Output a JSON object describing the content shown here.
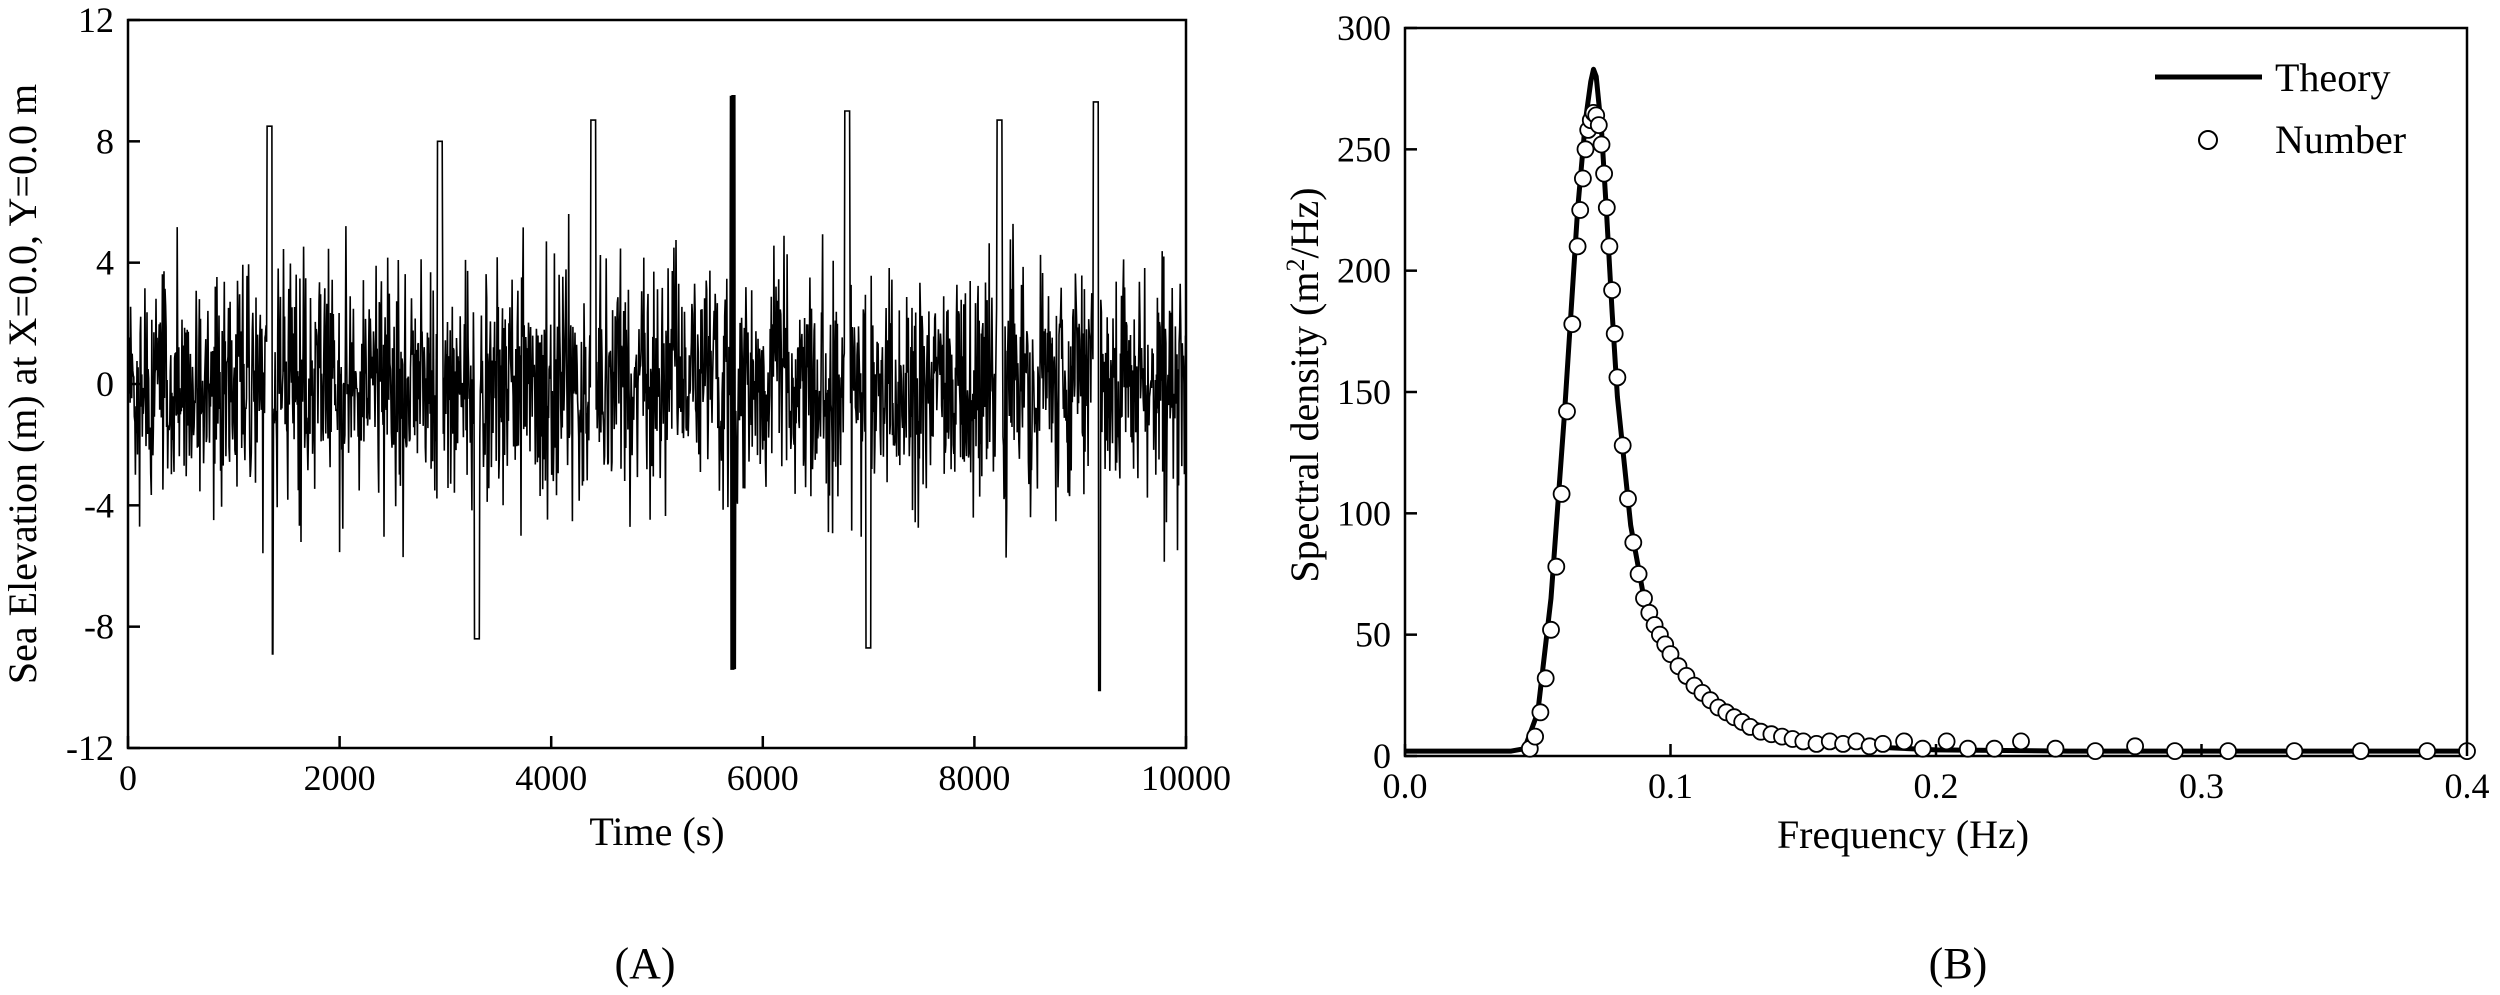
{
  "chart_data": [
    {
      "type": "line",
      "panel_label": "(A)",
      "xlabel": "Time (s)",
      "ylabel": "Sea Elevation (m) at X=0.0, Y=0.0 m",
      "xlim": [
        0,
        10000
      ],
      "ylim": [
        -12,
        12
      ],
      "x_ticks": [
        0,
        2000,
        4000,
        6000,
        8000,
        10000
      ],
      "y_ticks": [
        -12,
        -8,
        -4,
        0,
        4,
        8,
        12
      ],
      "grid": false,
      "series": [
        {
          "color": "#000000",
          "description_values": {
            "approx_envelope_min": -10.1,
            "approx_envelope_max": 9.5,
            "mean": 0
          },
          "peaks": [
            {
              "x": 1340,
              "y": 8.5
            },
            {
              "x": 1350,
              "y": -8.9
            },
            {
              "x": 3300,
              "y": -8.4
            },
            {
              "x": 5720,
              "y": 9.5
            },
            {
              "x": 5720,
              "y": -9.4
            },
            {
              "x": 7000,
              "y": -8.7
            },
            {
              "x": 9150,
              "y": 9.3
            },
            {
              "x": 9170,
              "y": -10.1
            },
            {
              "x": 4400,
              "y": 8.7
            },
            {
              "x": 6800,
              "y": 9.0
            },
            {
              "x": 2950,
              "y": 8.0
            },
            {
              "x": 8240,
              "y": 8.7
            }
          ]
        }
      ]
    },
    {
      "type": "line",
      "panel_label": "(B)",
      "xlabel": "Frequency (Hz)",
      "ylabel_main": "Spectral density (m",
      "ylabel_sup": "2",
      "ylabel_tail": "/Hz)",
      "xlim": [
        0,
        0.4
      ],
      "ylim": [
        0,
        300
      ],
      "x_ticks": [
        "0.0",
        "0.1",
        "0.2",
        "0.3",
        "0.4"
      ],
      "y_ticks": [
        0,
        50,
        100,
        150,
        200,
        250,
        300
      ],
      "grid": false,
      "legend": {
        "placement": "top-right",
        "entries": [
          "Theory",
          "Number"
        ]
      },
      "series": [
        {
          "name": "Theory",
          "style": "solid-line",
          "color": "#000000",
          "x": [
            0,
            0.04,
            0.045,
            0.05,
            0.055,
            0.06,
            0.065,
            0.068,
            0.07,
            0.071,
            0.072,
            0.074,
            0.076,
            0.078,
            0.08,
            0.085,
            0.09,
            0.095,
            0.1,
            0.11,
            0.12,
            0.13,
            0.14,
            0.15,
            0.17,
            0.2,
            0.25,
            0.3,
            0.35,
            0.4
          ],
          "y": [
            2,
            2,
            3,
            18,
            65,
            140,
            225,
            262,
            278,
            283,
            280,
            258,
            222,
            183,
            148,
            95,
            65,
            50,
            41,
            28,
            20,
            14,
            10,
            7,
            4,
            2.5,
            2,
            2,
            2,
            2
          ]
        },
        {
          "name": "Number",
          "style": "open-circle",
          "color": "#000000",
          "x": [
            0.047,
            0.049,
            0.051,
            0.053,
            0.055,
            0.057,
            0.059,
            0.061,
            0.063,
            0.065,
            0.066,
            0.067,
            0.068,
            0.069,
            0.07,
            0.071,
            0.072,
            0.073,
            0.074,
            0.075,
            0.076,
            0.077,
            0.078,
            0.079,
            0.08,
            0.082,
            0.084,
            0.086,
            0.088,
            0.09,
            0.092,
            0.094,
            0.096,
            0.098,
            0.1,
            0.103,
            0.106,
            0.109,
            0.112,
            0.115,
            0.118,
            0.121,
            0.124,
            0.127,
            0.13,
            0.134,
            0.138,
            0.142,
            0.146,
            0.15,
            0.155,
            0.16,
            0.165,
            0.17,
            0.175,
            0.18,
            0.188,
            0.195,
            0.204,
            0.212,
            0.222,
            0.232,
            0.245,
            0.26,
            0.275,
            0.29,
            0.31,
            0.335,
            0.36,
            0.385,
            0.4
          ],
          "y": [
            3,
            8,
            18,
            32,
            52,
            78,
            108,
            142,
            178,
            210,
            225,
            238,
            250,
            258,
            262,
            265,
            264,
            260,
            252,
            240,
            226,
            210,
            192,
            174,
            156,
            128,
            106,
            88,
            75,
            65,
            59,
            54,
            50,
            46,
            42,
            37,
            33,
            29,
            26,
            23,
            20,
            18,
            16,
            14,
            12,
            10,
            9,
            8,
            7,
            6,
            5,
            6,
            5,
            6,
            4,
            5,
            6,
            3,
            6,
            3,
            3,
            6,
            3,
            2,
            4,
            2,
            2,
            2,
            2,
            2,
            2
          ]
        }
      ]
    }
  ]
}
